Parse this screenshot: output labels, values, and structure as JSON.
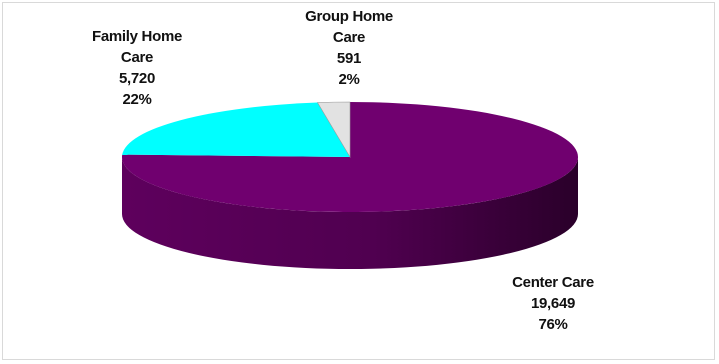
{
  "chart_data": {
    "type": "pie",
    "style": "3d",
    "title": "",
    "slices": [
      {
        "label_lines": [
          "Center Care"
        ],
        "value": 19649,
        "value_text": "19,649",
        "percent": "76%",
        "color": "#70006f"
      },
      {
        "label_lines": [
          "Family Home",
          "Care"
        ],
        "value": 5720,
        "value_text": "5,720",
        "percent": "22%",
        "color": "#00ffff"
      },
      {
        "label_lines": [
          "Group Home",
          "Care"
        ],
        "value": 591,
        "value_text": "591",
        "percent": "2%",
        "color": "#e2e2e2"
      }
    ],
    "legend": "none",
    "grid": false
  }
}
